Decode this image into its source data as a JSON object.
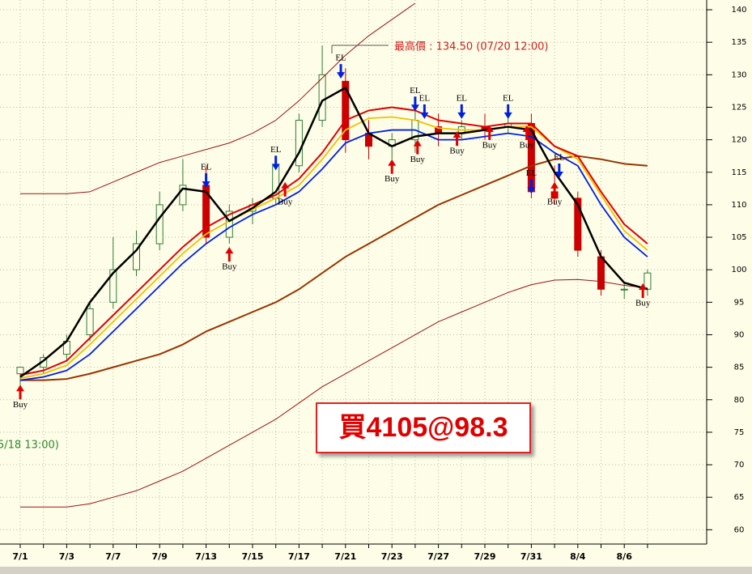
{
  "chart_data": {
    "type": "candlestick",
    "categories": [
      "7/1",
      null,
      "7/3",
      null,
      "7/7",
      null,
      "7/9",
      null,
      "7/13",
      null,
      "7/15",
      null,
      "7/17",
      null,
      "7/21",
      null,
      "7/23",
      null,
      "7/27",
      null,
      "7/29",
      null,
      "7/31",
      null,
      "8/4",
      null,
      "8/6",
      null
    ],
    "open": [
      84,
      85,
      87,
      90,
      95,
      100,
      104,
      110,
      113,
      105,
      109,
      111,
      116,
      123,
      129,
      121,
      119,
      120,
      122,
      121,
      122,
      122,
      122.5,
      112,
      111,
      102,
      97,
      97
    ],
    "high": [
      85,
      87,
      90,
      95,
      105,
      106,
      112,
      117,
      116,
      110,
      111,
      117,
      124,
      134.5,
      131,
      123,
      121,
      125,
      124,
      123,
      124,
      124.5,
      124,
      116,
      112,
      103,
      98,
      100
    ],
    "low": [
      82,
      84,
      86,
      89,
      94,
      99,
      103,
      109,
      104,
      104,
      107,
      110,
      115,
      122,
      118,
      117,
      117,
      118,
      119,
      120,
      120,
      121,
      111,
      110,
      102,
      96,
      95.5,
      96
    ],
    "close": [
      85,
      86.5,
      89,
      94,
      100,
      104,
      110,
      113,
      105,
      109,
      110,
      116,
      123,
      130,
      120,
      119,
      120,
      123,
      121,
      122,
      121.5,
      122.5,
      112,
      111,
      103,
      97,
      97,
      99.5
    ],
    "up_color": "#2e7d32",
    "down_color": "#cc0000",
    "series": [
      {
        "color": "#a01010",
        "values": [
          111.7,
          111.7,
          111.7,
          112,
          113.5,
          115,
          116.5,
          117.5,
          118.5,
          119.5,
          121,
          123,
          126,
          129.5,
          133,
          136,
          138.5,
          141,
          null,
          null,
          null,
          null,
          null,
          null,
          null,
          null,
          null,
          null
        ]
      },
      {
        "color": "#a01010",
        "values": [
          63.5,
          63.5,
          63.5,
          64,
          65,
          66,
          67.5,
          69,
          71,
          73,
          75,
          77,
          79.5,
          82,
          84,
          86,
          88,
          90,
          92,
          93.5,
          95,
          96.5,
          97.7,
          98.4,
          98.5,
          98.2,
          97.6,
          97.2
        ]
      },
      {
        "color": "#993300",
        "values": [
          83,
          83,
          83.2,
          84,
          85,
          86,
          87,
          88.5,
          90.5,
          92,
          93.5,
          95,
          97,
          99.5,
          102,
          104,
          106,
          108,
          110,
          111.5,
          113,
          114.5,
          116,
          117,
          117.5,
          117,
          116.3,
          116
        ]
      },
      {
        "color": "#0020e0",
        "values": [
          83,
          83.5,
          84.5,
          87,
          90.5,
          94,
          97.5,
          101,
          104,
          106.5,
          108.5,
          110,
          112,
          115.5,
          119.5,
          121,
          121.5,
          121.5,
          120,
          120,
          120.5,
          121,
          120.5,
          118,
          116,
          110,
          105,
          102
        ]
      },
      {
        "color": "#f0c000",
        "values": [
          83.3,
          84,
          85.3,
          88.5,
          92,
          95.5,
          99,
          102.5,
          105.5,
          107.5,
          109.3,
          111,
          113,
          117,
          121.5,
          123.3,
          123.5,
          123,
          121.8,
          121.5,
          121.5,
          122,
          122,
          119,
          117,
          111.5,
          106,
          103
        ]
      },
      {
        "color": "#e00000",
        "values": [
          83.8,
          84.5,
          86,
          89.5,
          93,
          96.5,
          100,
          103.5,
          106.5,
          108.5,
          110,
          111.5,
          114,
          118,
          123,
          124.5,
          125,
          124.5,
          123,
          122.5,
          122,
          122.5,
          122.5,
          119,
          117.5,
          112,
          107,
          104
        ]
      },
      {
        "color": "#000000",
        "values": [
          83.5,
          86,
          89,
          95,
          99.5,
          103,
          108,
          112.5,
          112,
          107.5,
          109.5,
          112,
          118,
          126,
          128,
          121,
          119,
          120.5,
          121,
          121,
          121.5,
          122,
          121.5,
          115,
          110,
          102,
          98,
          97
        ]
      }
    ],
    "signals": [
      {
        "text": "Buy",
        "x": 0,
        "y": 82.3
      },
      {
        "text": "Buy",
        "x": 9.0,
        "y": 103.5
      },
      {
        "text": "Buy",
        "x": 11.4,
        "y": 113.5
      },
      {
        "text": "Buy",
        "x": 16.0,
        "y": 117
      },
      {
        "text": "Buy",
        "x": 17.1,
        "y": 120
      },
      {
        "text": "Buy",
        "x": 18.8,
        "y": 121.3
      },
      {
        "text": "Buy",
        "x": 20.2,
        "y": 122.2
      },
      {
        "text": "Buy",
        "x": 21.8,
        "y": 122.2
      },
      {
        "text": "Buy",
        "x": 23.0,
        "y": 113.5
      },
      {
        "text": "Buy",
        "x": 26.8,
        "y": 97.9
      },
      {
        "text": "EL",
        "x": 8.0,
        "y": 112.6
      },
      {
        "text": "EL",
        "x": 11.0,
        "y": 115.3
      },
      {
        "text": "EL",
        "x": 13.8,
        "y": 129.4
      },
      {
        "text": "EL",
        "x": 17.0,
        "y": 124.4
      },
      {
        "text": "EL",
        "x": 17.4,
        "y": 123.2
      },
      {
        "text": "EL",
        "x": 19.0,
        "y": 123.2
      },
      {
        "text": "EL",
        "x": 21.0,
        "y": 123.2
      },
      {
        "text": "EL",
        "x": 22.0,
        "y": 111.7
      },
      {
        "text": "EL",
        "x": 23.2,
        "y": 114.1
      }
    ],
    "high_note": "最高價 : 134.50 (07/20 12:00)",
    "low_note": "5/18 13:00)",
    "order_label": "買4105@98.3",
    "ylim": [
      57.8,
      141.5
    ],
    "yticks": [
      60,
      65,
      70,
      75,
      80,
      85,
      90,
      95,
      100,
      105,
      110,
      115,
      120,
      125,
      130,
      135,
      140
    ],
    "grid": true
  }
}
